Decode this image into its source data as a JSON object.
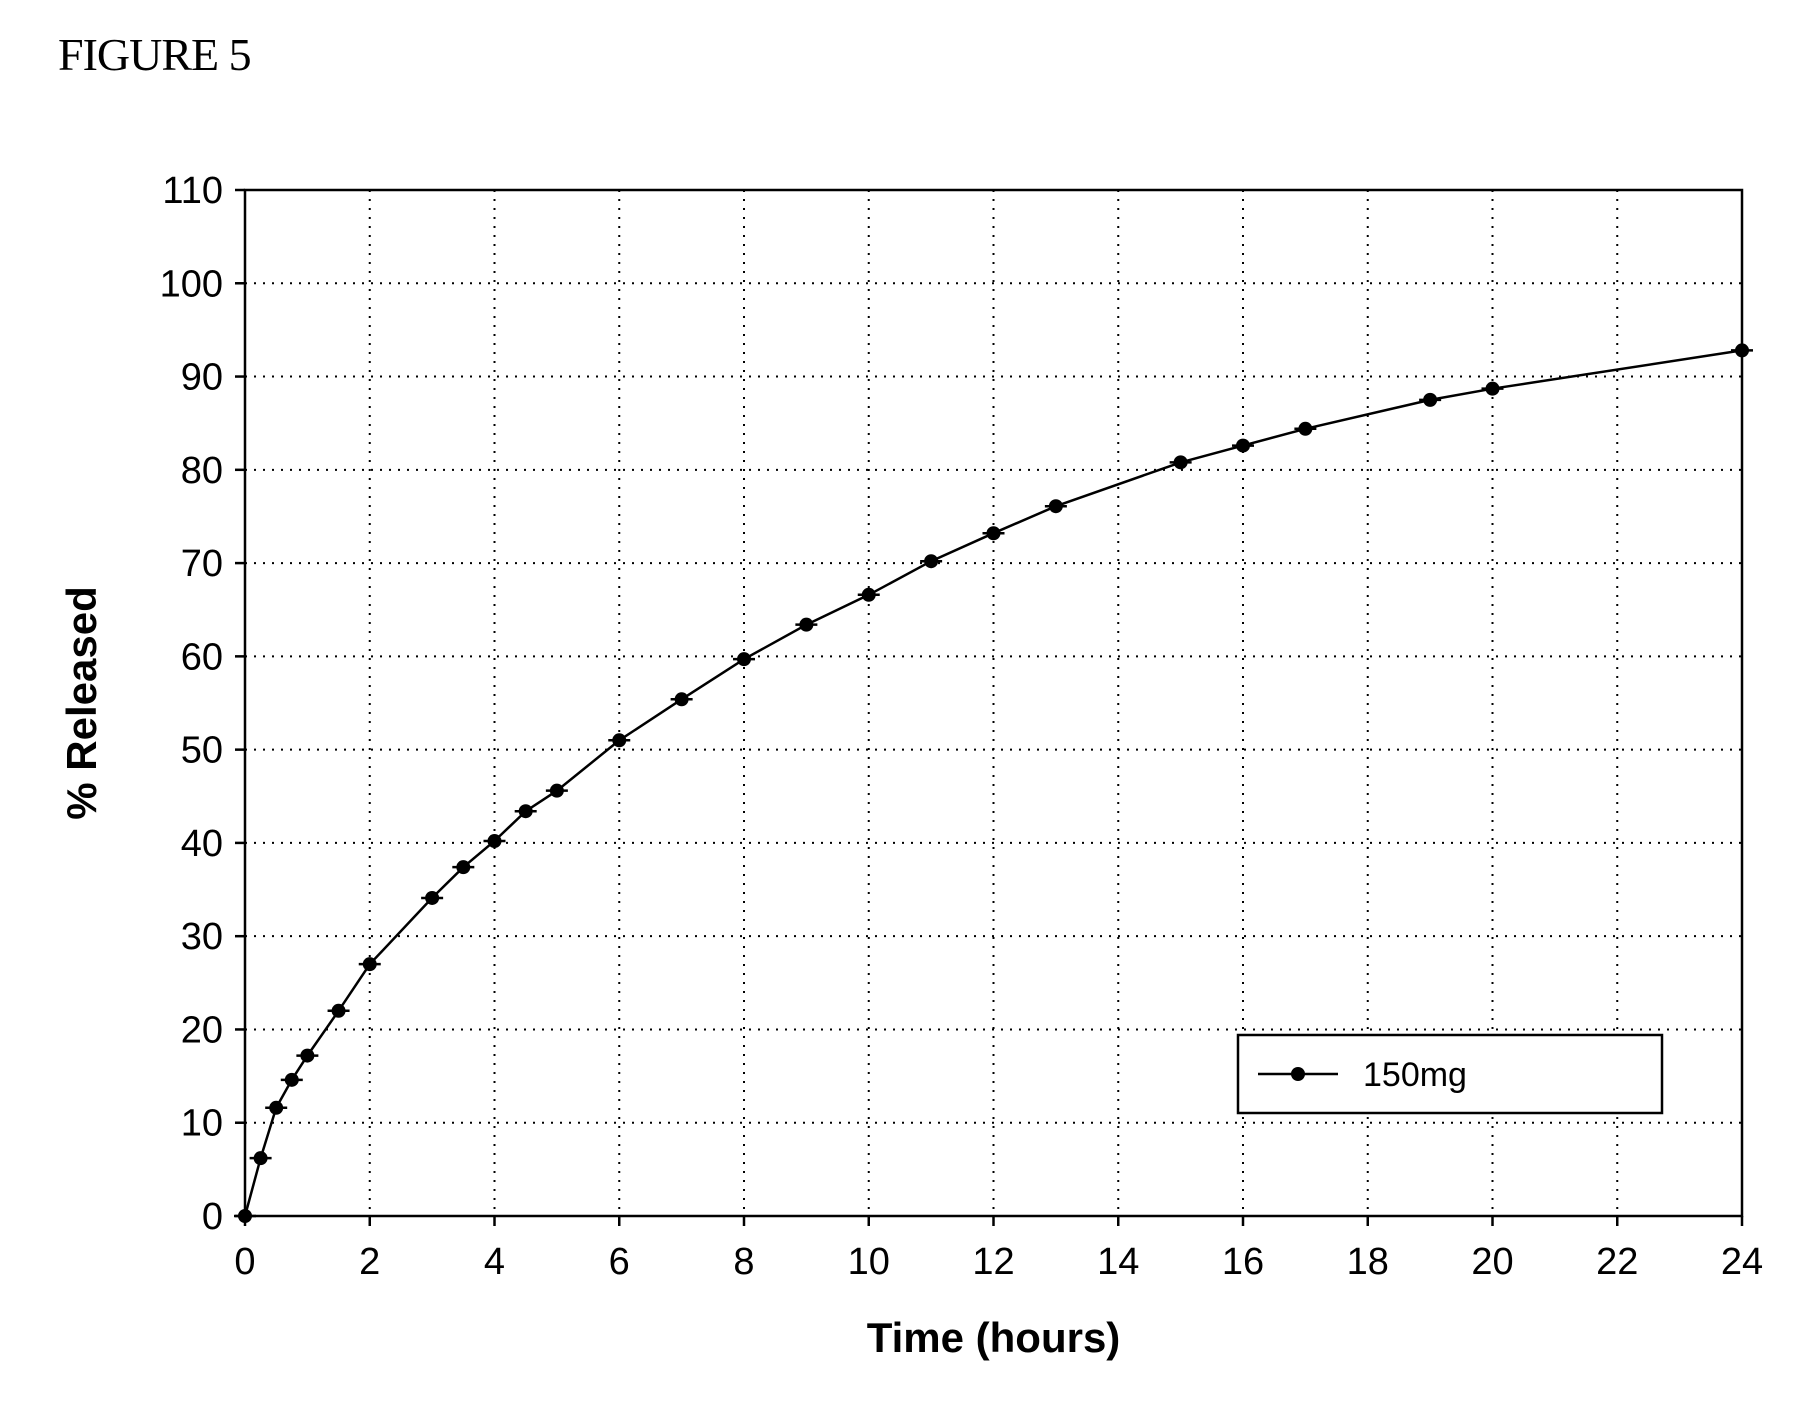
{
  "figure": {
    "label": "FIGURE 5"
  },
  "chart_data": {
    "type": "line",
    "title": "",
    "xlabel": "Time (hours)",
    "ylabel": "% Released",
    "xlim": [
      0,
      24
    ],
    "ylim": [
      0,
      110
    ],
    "x_ticks": [
      0,
      2,
      4,
      6,
      8,
      10,
      12,
      14,
      16,
      18,
      20,
      22,
      24
    ],
    "y_ticks": [
      0,
      10,
      20,
      30,
      40,
      50,
      60,
      70,
      80,
      90,
      100,
      110
    ],
    "grid": true,
    "legend_position": "bottom-right",
    "series": [
      {
        "name": "150mg",
        "color": "#000000",
        "marker": "circle",
        "error_bars": true,
        "x": [
          0,
          0.25,
          0.5,
          0.75,
          1,
          1.5,
          2,
          3,
          3.5,
          4,
          4.5,
          5,
          6,
          7,
          8,
          9,
          10,
          11,
          12,
          13,
          15,
          16,
          17,
          19,
          20,
          24
        ],
        "y": [
          0,
          6.2,
          11.6,
          14.6,
          17.2,
          22.0,
          27.0,
          34.1,
          37.4,
          40.2,
          43.4,
          45.6,
          51.0,
          55.4,
          59.7,
          63.4,
          66.6,
          70.2,
          73.2,
          76.1,
          80.8,
          82.6,
          84.4,
          87.5,
          88.7,
          92.8
        ]
      }
    ]
  }
}
